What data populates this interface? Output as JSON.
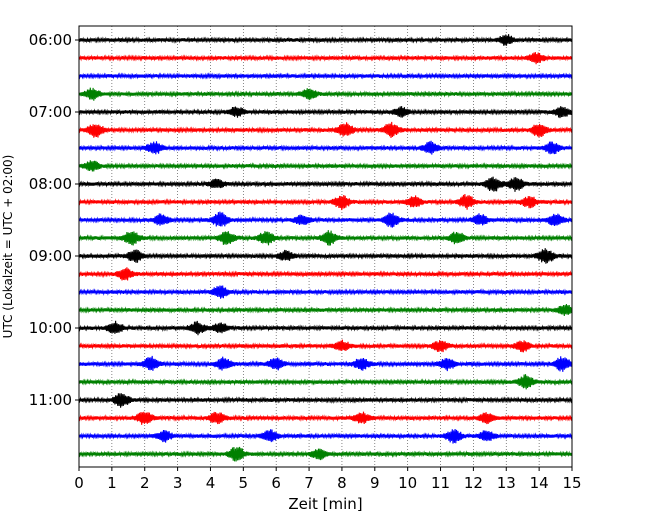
{
  "chart_data": {
    "type": "line",
    "title": "",
    "xlabel": "Zeit  [min]",
    "ylabel": "UTC (Lokalzeit = UTC + 02:00)",
    "xlim": [
      0,
      15
    ],
    "x_ticks": [
      "0",
      "1",
      "2",
      "3",
      "4",
      "5",
      "6",
      "7",
      "8",
      "9",
      "10",
      "11",
      "12",
      "13",
      "14",
      "15"
    ],
    "y_tick_labels": [
      "06:00",
      "07:00",
      "08:00",
      "09:00",
      "10:00",
      "11:00"
    ],
    "grid": "vertical dotted",
    "row_interval_minutes": 15,
    "colors": [
      "#000000",
      "#ff0000",
      "#0000ff",
      "#008000"
    ],
    "rows": [
      {
        "start": "06:00",
        "color": "#000000",
        "bursts": [
          [
            13.0,
            0.5
          ]
        ]
      },
      {
        "start": "06:15",
        "color": "#ff0000",
        "bursts": [
          [
            13.9,
            0.5
          ]
        ]
      },
      {
        "start": "06:30",
        "color": "#0000ff",
        "bursts": []
      },
      {
        "start": "06:45",
        "color": "#008000",
        "bursts": [
          [
            0.4,
            0.6
          ],
          [
            7.0,
            0.5
          ]
        ]
      },
      {
        "start": "07:00",
        "color": "#000000",
        "bursts": [
          [
            4.8,
            0.5
          ],
          [
            9.8,
            0.5
          ],
          [
            14.7,
            0.6
          ]
        ]
      },
      {
        "start": "07:15",
        "color": "#ff0000",
        "bursts": [
          [
            0.5,
            0.9
          ],
          [
            8.1,
            0.9
          ],
          [
            9.5,
            0.9
          ],
          [
            14.0,
            0.9
          ]
        ]
      },
      {
        "start": "07:30",
        "color": "#0000ff",
        "bursts": [
          [
            2.3,
            0.7
          ],
          [
            10.7,
            0.7
          ],
          [
            14.4,
            0.7
          ]
        ]
      },
      {
        "start": "07:45",
        "color": "#008000",
        "bursts": [
          [
            0.4,
            0.5
          ]
        ]
      },
      {
        "start": "08:00",
        "color": "#000000",
        "bursts": [
          [
            12.6,
            1.0
          ],
          [
            13.3,
            0.9
          ],
          [
            4.2,
            0.4
          ]
        ]
      },
      {
        "start": "08:15",
        "color": "#ff0000",
        "bursts": [
          [
            8.0,
            0.9
          ],
          [
            10.2,
            0.6
          ],
          [
            11.8,
            0.9
          ],
          [
            13.7,
            0.6
          ]
        ]
      },
      {
        "start": "08:30",
        "color": "#0000ff",
        "bursts": [
          [
            4.3,
            1.0
          ],
          [
            2.5,
            0.6
          ],
          [
            6.8,
            0.6
          ],
          [
            9.5,
            0.9
          ],
          [
            12.2,
            0.6
          ],
          [
            14.5,
            0.8
          ]
        ]
      },
      {
        "start": "08:45",
        "color": "#008000",
        "bursts": [
          [
            1.6,
            0.9
          ],
          [
            4.5,
            0.9
          ],
          [
            5.7,
            0.9
          ],
          [
            7.6,
            0.9
          ],
          [
            11.5,
            0.7
          ]
        ]
      },
      {
        "start": "09:00",
        "color": "#000000",
        "bursts": [
          [
            1.7,
            0.8
          ],
          [
            6.3,
            0.5
          ],
          [
            14.2,
            1.0
          ]
        ]
      },
      {
        "start": "09:15",
        "color": "#ff0000",
        "bursts": [
          [
            1.4,
            0.7
          ]
        ]
      },
      {
        "start": "09:30",
        "color": "#0000ff",
        "bursts": [
          [
            4.3,
            0.8
          ]
        ]
      },
      {
        "start": "09:45",
        "color": "#008000",
        "bursts": [
          [
            14.8,
            0.6
          ]
        ]
      },
      {
        "start": "10:00",
        "color": "#000000",
        "bursts": [
          [
            1.1,
            0.7
          ],
          [
            3.6,
            0.7
          ],
          [
            4.3,
            0.5
          ]
        ]
      },
      {
        "start": "10:15",
        "color": "#ff0000",
        "bursts": [
          [
            8.0,
            0.6
          ],
          [
            11.0,
            0.6
          ],
          [
            13.5,
            0.6
          ]
        ]
      },
      {
        "start": "10:30",
        "color": "#0000ff",
        "bursts": [
          [
            2.2,
            0.9
          ],
          [
            4.4,
            0.7
          ],
          [
            6.0,
            0.7
          ],
          [
            8.6,
            0.7
          ],
          [
            11.2,
            0.7
          ],
          [
            14.7,
            0.9
          ]
        ]
      },
      {
        "start": "10:45",
        "color": "#008000",
        "bursts": [
          [
            13.6,
            0.9
          ]
        ]
      },
      {
        "start": "11:00",
        "color": "#000000",
        "bursts": [
          [
            1.3,
            0.9
          ]
        ]
      },
      {
        "start": "11:15",
        "color": "#ff0000",
        "bursts": [
          [
            2.0,
            0.9
          ],
          [
            4.2,
            0.7
          ],
          [
            8.6,
            0.6
          ],
          [
            12.4,
            0.5
          ]
        ]
      },
      {
        "start": "11:30",
        "color": "#0000ff",
        "bursts": [
          [
            2.6,
            0.6
          ],
          [
            5.8,
            0.7
          ],
          [
            11.4,
            0.9
          ],
          [
            12.4,
            0.6
          ]
        ]
      },
      {
        "start": "11:45",
        "color": "#008000",
        "bursts": [
          [
            4.8,
            0.9
          ],
          [
            7.3,
            0.5
          ]
        ]
      }
    ]
  }
}
